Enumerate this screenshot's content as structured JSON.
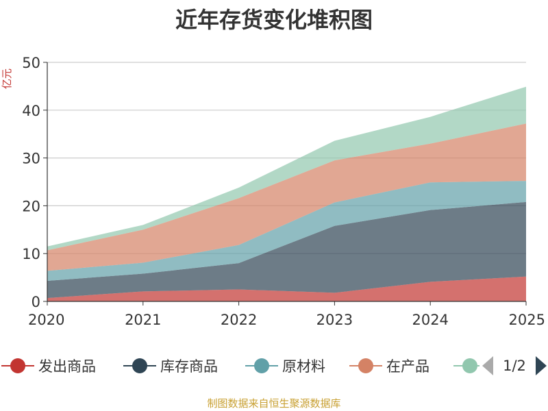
{
  "chart_data": {
    "type": "area",
    "stacked": true,
    "title": "近年存货变化堆积图",
    "ylabel": "亿元",
    "categories": [
      "2020",
      "2021",
      "2022",
      "2023",
      "2024",
      "2025"
    ],
    "yticks": [
      "0",
      "10",
      "20",
      "30",
      "40",
      "50"
    ],
    "ylim": [
      0,
      50
    ],
    "grid": true,
    "legend_position": "bottom",
    "series": [
      {
        "name": "发出商品",
        "color": "#c23531",
        "values": [
          0.7,
          2.1,
          2.5,
          1.8,
          4.1,
          5.2
        ]
      },
      {
        "name": "库存商品",
        "color": "#2f4554",
        "values": [
          3.6,
          3.7,
          5.5,
          14.0,
          15.0,
          15.6
        ]
      },
      {
        "name": "原材料",
        "color": "#61a0a8",
        "values": [
          2.1,
          2.3,
          3.8,
          4.9,
          5.8,
          4.4
        ]
      },
      {
        "name": "在产品",
        "color": "#d48265",
        "values": [
          4.3,
          6.9,
          9.8,
          8.8,
          8.1,
          12.0
        ]
      },
      {
        "name": "",
        "color": "#91c7ae",
        "values": [
          0.8,
          1.0,
          2.2,
          4.1,
          5.6,
          7.7
        ]
      }
    ]
  },
  "legend": {
    "page": "1/2"
  },
  "source": "制图数据来自恒生聚源数据库"
}
